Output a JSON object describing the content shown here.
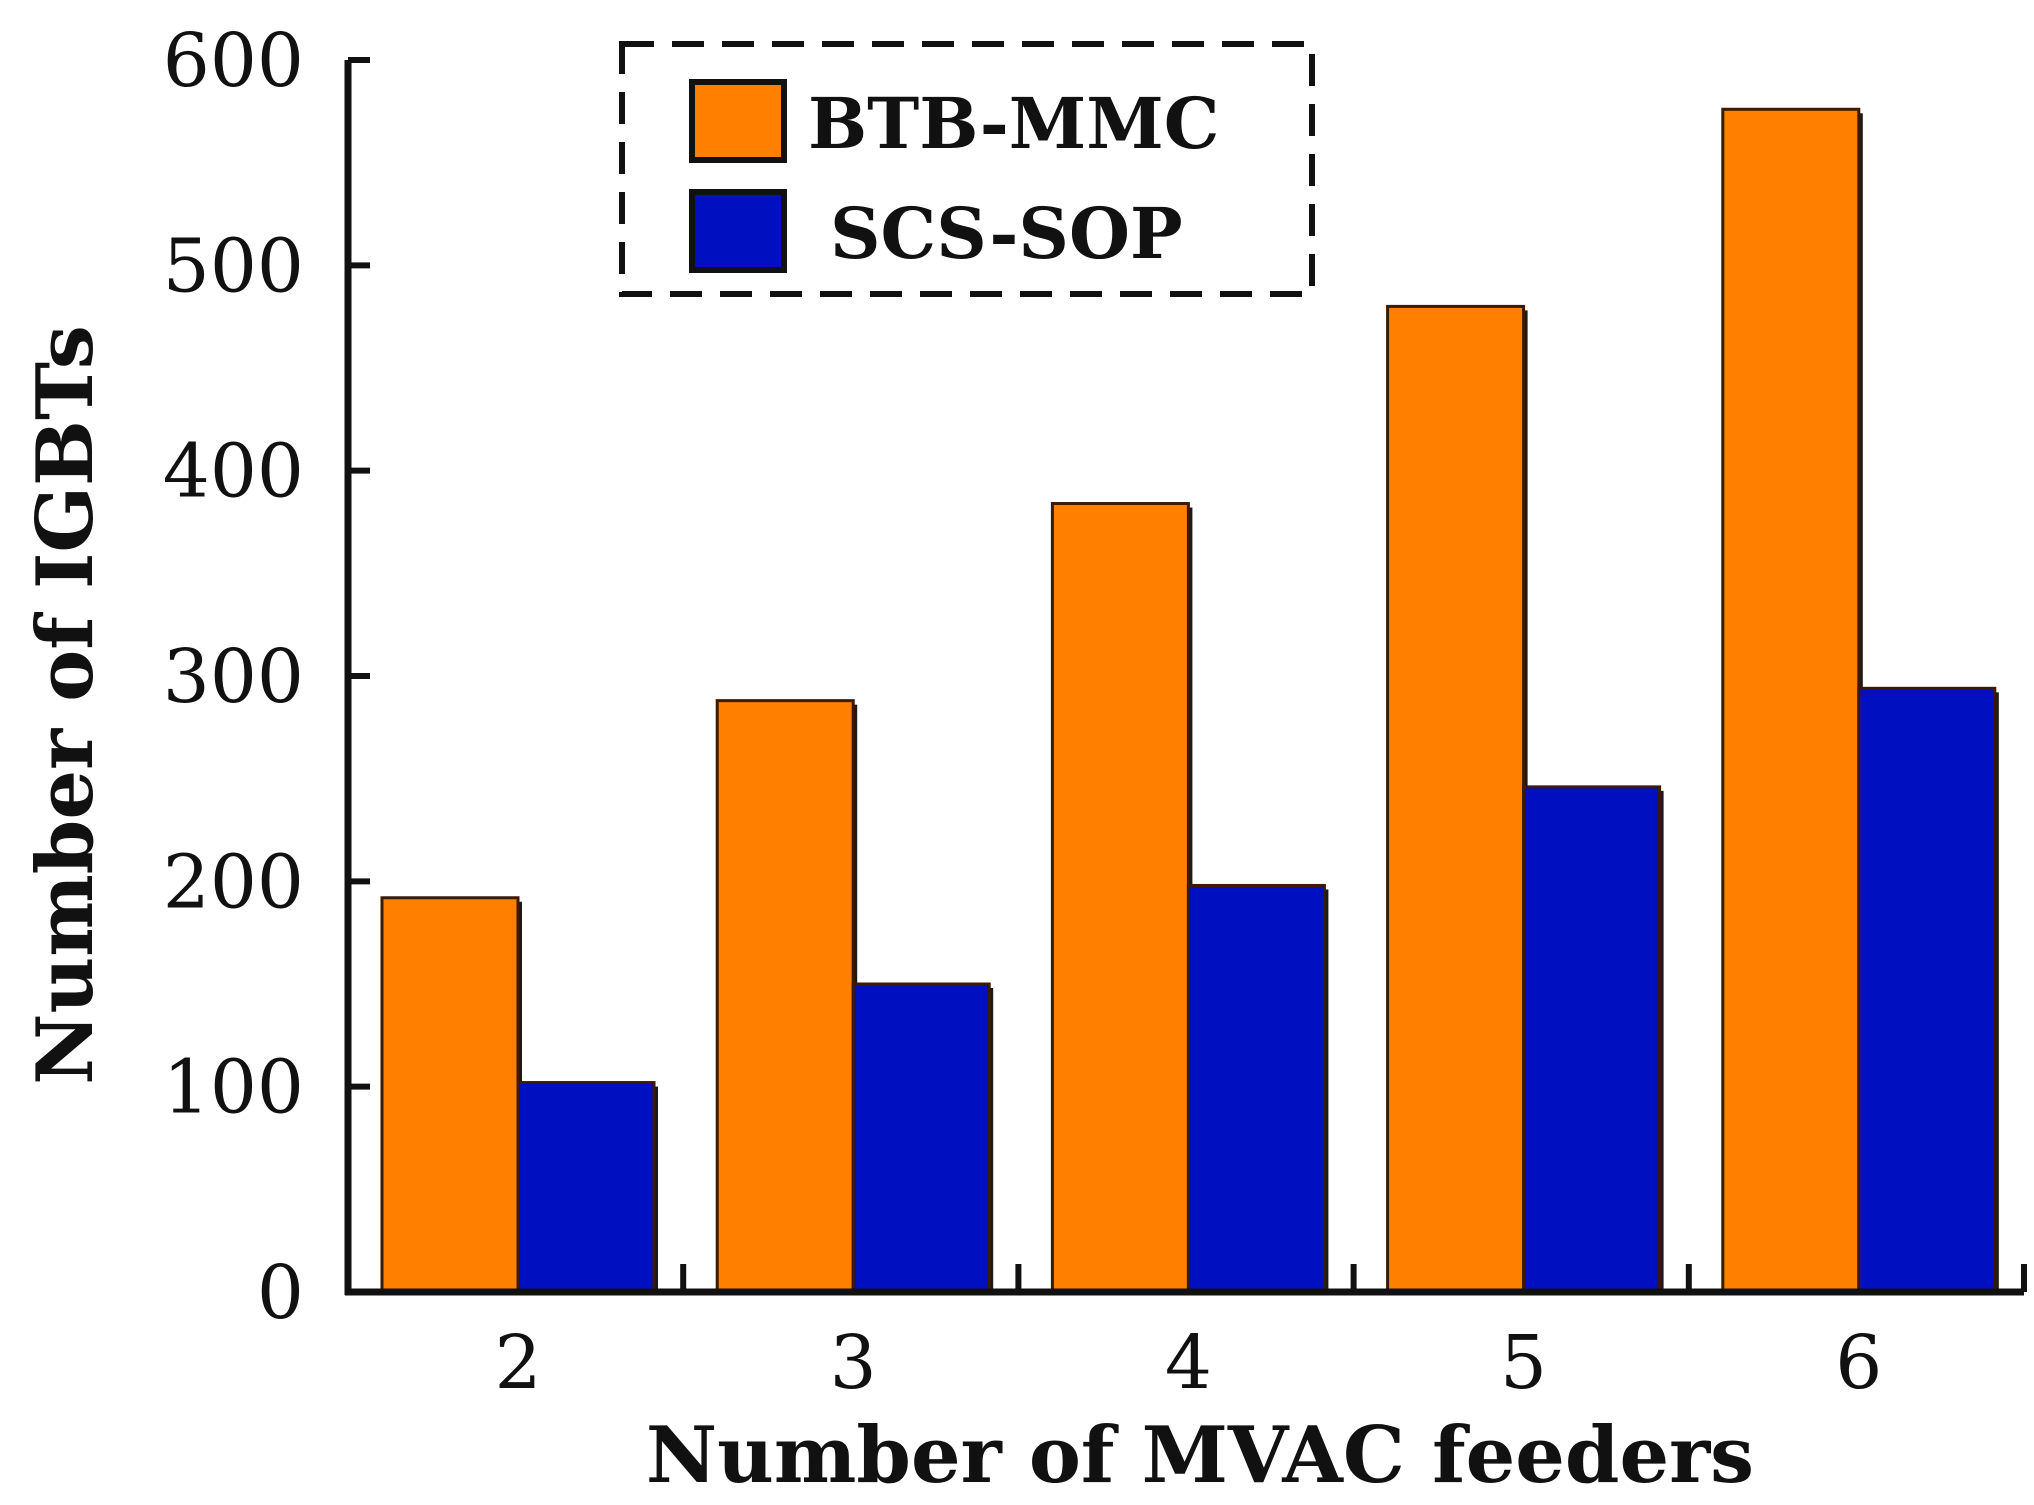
{
  "chart_data": {
    "type": "bar",
    "xlabel": "Number of MVAC feeders",
    "ylabel": "Number of IGBTs",
    "categories": [
      "2",
      "3",
      "4",
      "5",
      "6"
    ],
    "series": [
      {
        "name": "BTB-MMC",
        "color": "#FF8000",
        "values": [
          192,
          288,
          384,
          480,
          576
        ]
      },
      {
        "name": "SCS-SOP",
        "color": "#0010C0",
        "values": [
          102,
          150,
          198,
          246,
          294
        ]
      }
    ],
    "ylim": [
      0,
      600
    ],
    "yticks": [
      0,
      100,
      200,
      300,
      400,
      500,
      600
    ],
    "grid": false,
    "legend_position": "top-center",
    "legend_border": "dashed"
  }
}
